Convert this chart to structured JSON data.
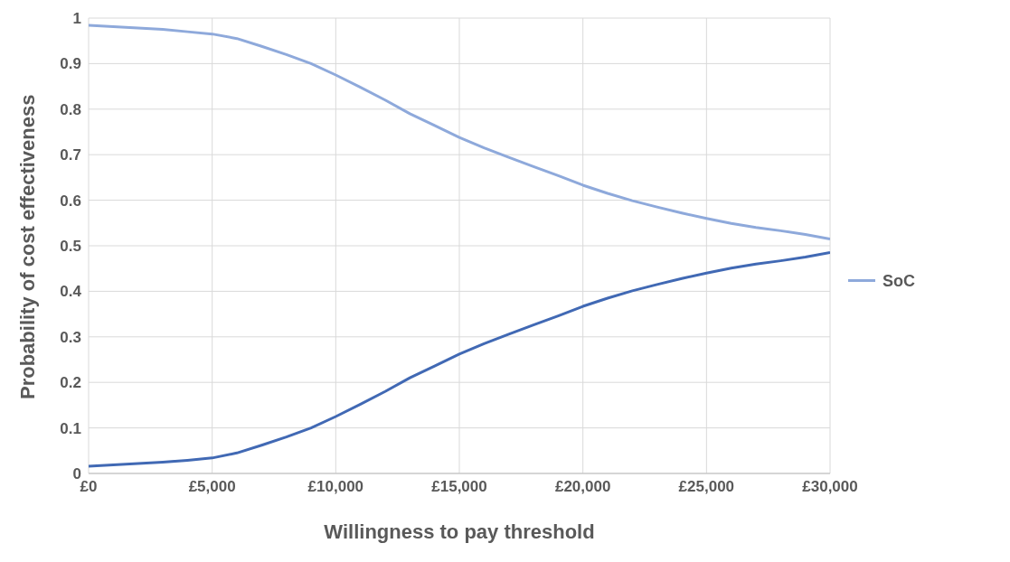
{
  "chart_data": {
    "type": "line",
    "xlabel": "Willingness to pay threshold",
    "ylabel": "Probability of cost effectiveness",
    "x": [
      0,
      1000,
      2000,
      3000,
      4000,
      5000,
      6000,
      7000,
      8000,
      9000,
      10000,
      11000,
      12000,
      13000,
      14000,
      15000,
      16000,
      17000,
      18000,
      19000,
      20000,
      21000,
      22000,
      23000,
      24000,
      25000,
      26000,
      27000,
      28000,
      29000,
      30000
    ],
    "series": [
      {
        "color": "#4169b4",
        "values": [
          0.016,
          0.019,
          0.022,
          0.025,
          0.029,
          0.034,
          0.045,
          0.062,
          0.08,
          0.1,
          0.125,
          0.152,
          0.18,
          0.21,
          0.236,
          0.262,
          0.285,
          0.306,
          0.326,
          0.346,
          0.367,
          0.385,
          0.401,
          0.415,
          0.428,
          0.44,
          0.451,
          0.46,
          0.467,
          0.475,
          0.485
        ]
      },
      {
        "name": "SoC",
        "color": "#8ea9db",
        "values": [
          0.984,
          0.981,
          0.978,
          0.975,
          0.97,
          0.965,
          0.955,
          0.938,
          0.92,
          0.9,
          0.875,
          0.848,
          0.82,
          0.79,
          0.764,
          0.738,
          0.715,
          0.694,
          0.674,
          0.654,
          0.633,
          0.615,
          0.599,
          0.585,
          0.572,
          0.56,
          0.549,
          0.54,
          0.533,
          0.525,
          0.515
        ]
      }
    ],
    "xlim": [
      0,
      30000
    ],
    "xticks": [
      {
        "value": 0,
        "label": "£0"
      },
      {
        "value": 5000,
        "label": "£5,000"
      },
      {
        "value": 10000,
        "label": "£10,000"
      },
      {
        "value": 15000,
        "label": "£15,000"
      },
      {
        "value": 20000,
        "label": "£20,000"
      },
      {
        "value": 25000,
        "label": "£25,000"
      },
      {
        "value": 30000,
        "label": "£30,000"
      }
    ],
    "ylim": [
      0,
      1
    ],
    "yticks": [
      0,
      0.1,
      0.2,
      0.3,
      0.4,
      0.5,
      0.6,
      0.7,
      0.8,
      0.9,
      1
    ],
    "grid": true,
    "legend": "right",
    "marker": "none",
    "line_style": "solid"
  }
}
